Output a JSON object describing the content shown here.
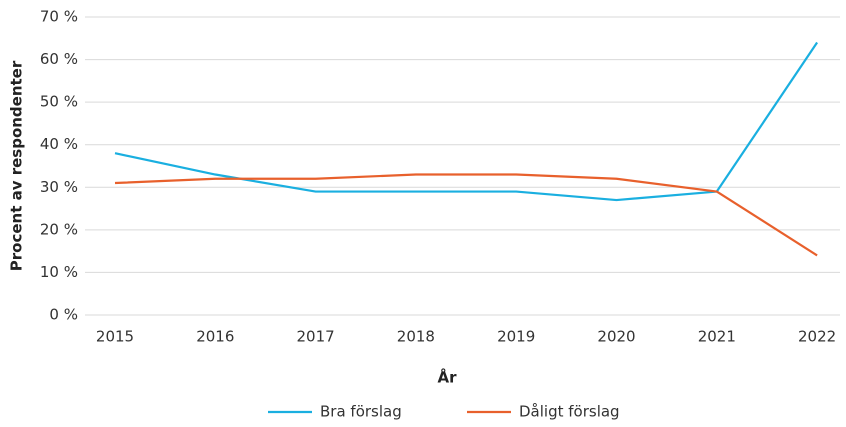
{
  "chart_data": {
    "type": "line",
    "categories": [
      "2015",
      "2016",
      "2017",
      "2018",
      "2019",
      "2020",
      "2021",
      "2022"
    ],
    "series": [
      {
        "name": "Bra förslag",
        "color": "#1aafe0",
        "values": [
          38,
          33,
          29,
          29,
          29,
          27,
          29,
          64
        ]
      },
      {
        "name": "Dåligt förslag",
        "color": "#e8602c",
        "values": [
          31,
          32,
          32,
          33,
          33,
          32,
          29,
          14
        ]
      }
    ],
    "xlabel": "År",
    "ylabel": "Procent av respondenter",
    "ylim": [
      0,
      70
    ],
    "yticks": [
      {
        "value": 0,
        "label": "0 %"
      },
      {
        "value": 10,
        "label": "10 %"
      },
      {
        "value": 20,
        "label": "20 %"
      },
      {
        "value": 30,
        "label": "30 %"
      },
      {
        "value": 40,
        "label": "40 %"
      },
      {
        "value": 50,
        "label": "50 %"
      },
      {
        "value": 60,
        "label": "60 %"
      },
      {
        "value": 70,
        "label": "70 %"
      }
    ],
    "grid": true,
    "legend": "bottom"
  }
}
